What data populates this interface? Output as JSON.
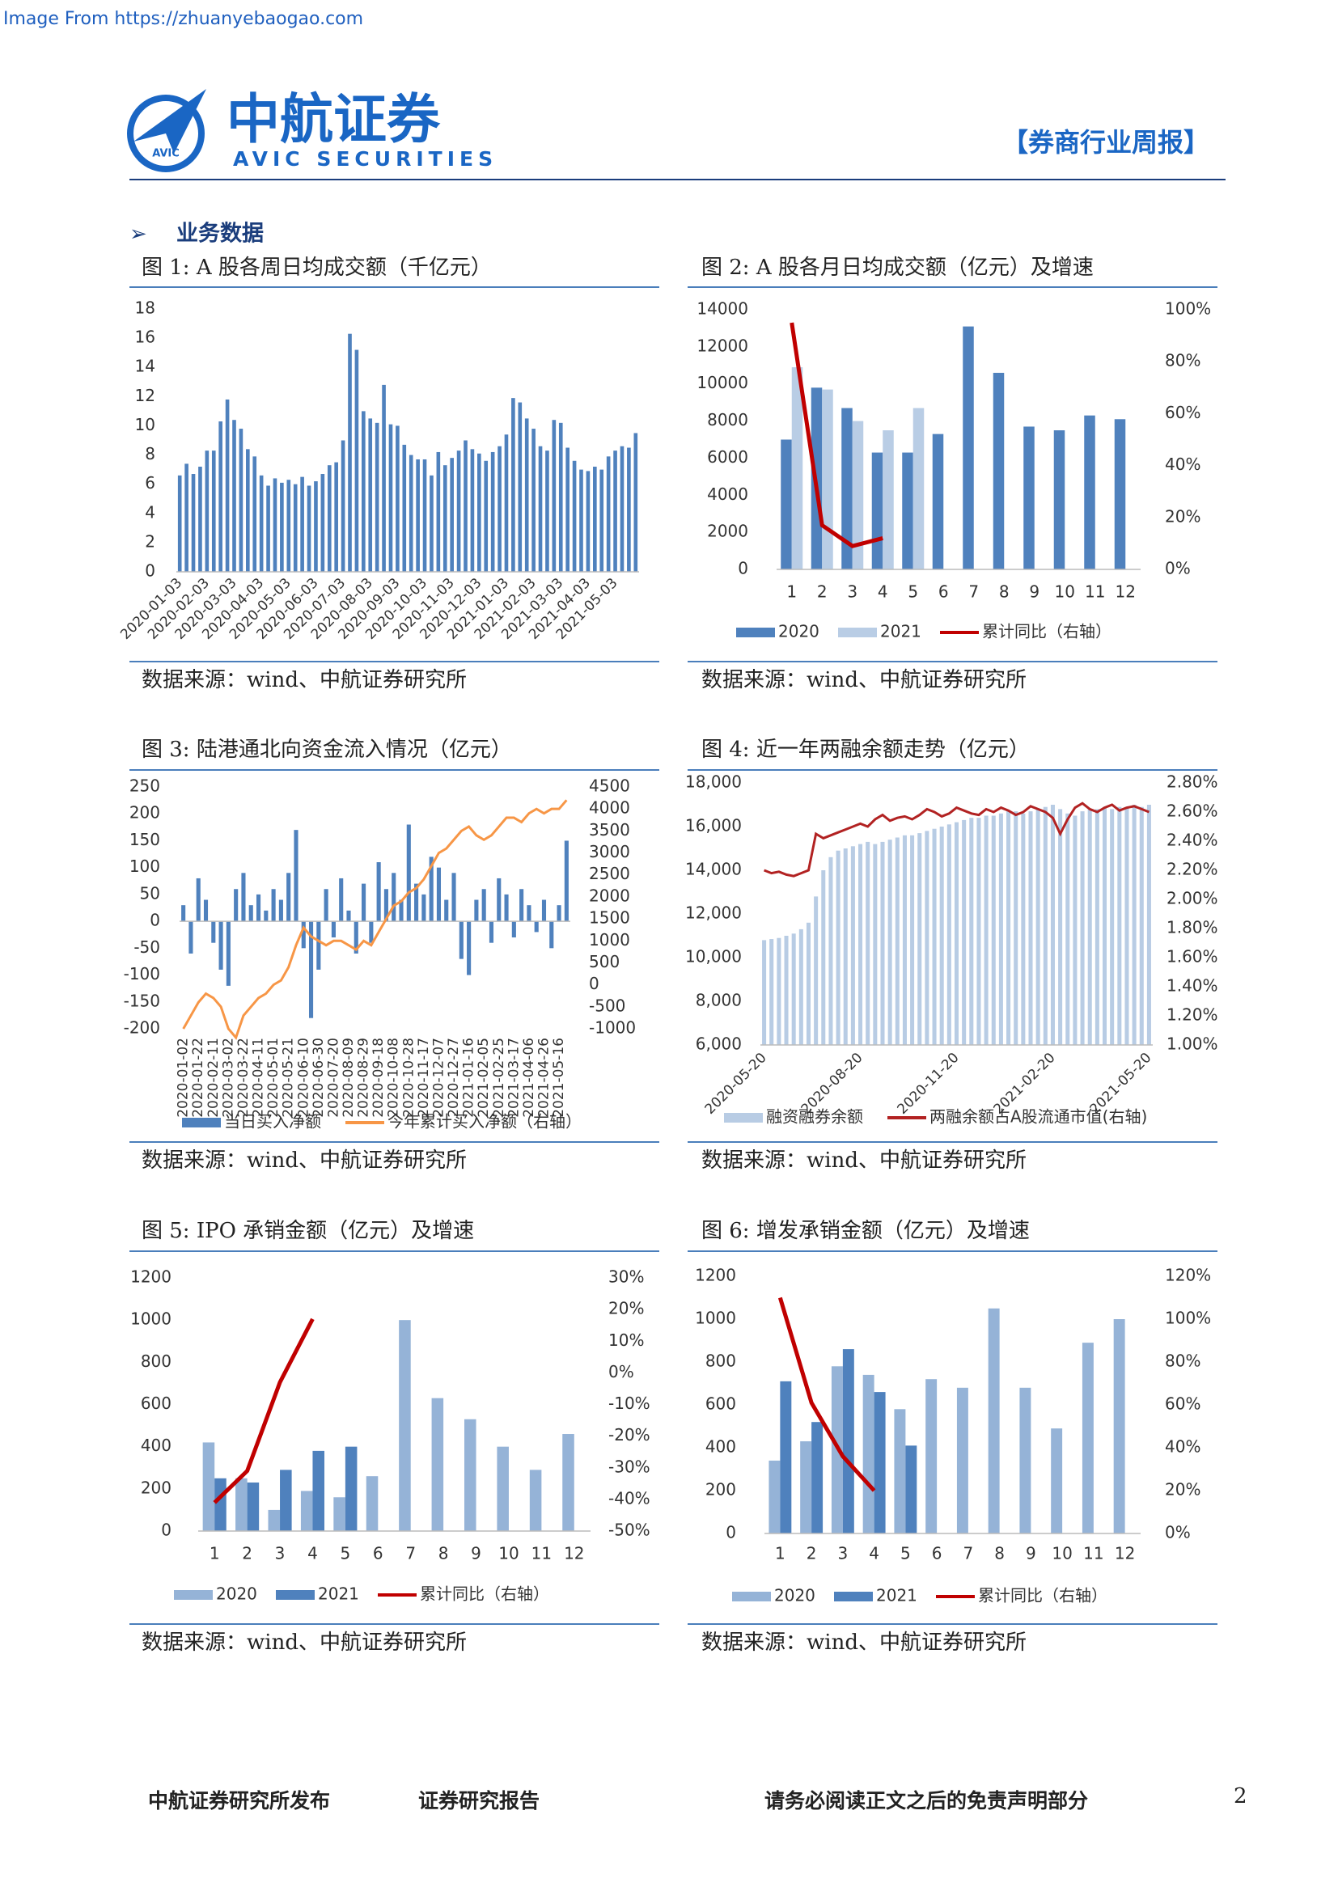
{
  "header": {
    "source_note": "Image From https://zhuanyebaogao.com",
    "logo_cn": "中航证券",
    "logo_en": "AVIC  SECURITIES",
    "logo_badge": "AVIC",
    "report_type": "【券商行业周报】"
  },
  "section": "业务数据",
  "figures": [
    {
      "caption": "图 1: A 股各周日均成交额（千亿元）",
      "source": "数据来源：wind、中航证券研究所",
      "chart_data": {
        "type": "bar",
        "ylim": [
          0,
          18
        ],
        "yticks": [
          0,
          2,
          4,
          6,
          8,
          10,
          12,
          14,
          16,
          18
        ],
        "categories": [
          "2020-01-03",
          null,
          null,
          null,
          "2020-02-03",
          null,
          null,
          null,
          "2020-03-03",
          null,
          null,
          null,
          "2020-04-03",
          null,
          null,
          null,
          "2020-05-03",
          null,
          null,
          null,
          "2020-06-03",
          null,
          null,
          null,
          "2020-07-03",
          null,
          null,
          null,
          "2020-08-03",
          null,
          null,
          null,
          "2020-09-03",
          null,
          null,
          null,
          "2020-10-03",
          null,
          null,
          null,
          "2020-11-03",
          null,
          null,
          null,
          "2020-12-03",
          null,
          null,
          null,
          "2021-01-03",
          null,
          null,
          null,
          "2021-02-03",
          null,
          null,
          null,
          "2021-03-03",
          null,
          null,
          null,
          "2021-04-03",
          null,
          null,
          null,
          "2021-05-03",
          null,
          null,
          null
        ],
        "series": [
          {
            "color": "#4f81bd",
            "values": [
              6.6,
              7.4,
              6.7,
              7.2,
              8.3,
              8.3,
              10.3,
              11.8,
              10.4,
              9.8,
              8.4,
              7.9,
              6.6,
              5.9,
              6.4,
              6.1,
              6.3,
              6.0,
              6.5,
              5.9,
              6.2,
              6.7,
              7.3,
              7.5,
              9.0,
              16.3,
              15.2,
              11.0,
              10.5,
              10.2,
              12.8,
              10.1,
              10.0,
              8.7,
              8.0,
              7.7,
              7.7,
              6.6,
              8.2,
              7.3,
              7.8,
              8.3,
              9.0,
              8.4,
              8.1,
              7.6,
              8.2,
              8.6,
              9.4,
              11.9,
              11.6,
              10.5,
              9.8,
              8.6,
              8.3,
              10.4,
              10.2,
              8.5,
              7.6,
              7.0,
              6.9,
              7.2,
              7.0,
              7.9,
              8.3,
              8.6,
              8.5,
              9.5
            ]
          }
        ]
      }
    },
    {
      "caption": "图 2: A 股各月日均成交额（亿元）及增速",
      "source": "数据来源：wind、中航证券研究所",
      "chart_data": {
        "type": "bar_line",
        "ylim": [
          0,
          14000
        ],
        "yticks": [
          0,
          2000,
          4000,
          6000,
          8000,
          10000,
          12000,
          14000
        ],
        "y2lim": [
          0,
          100
        ],
        "y2ticks": [
          {
            "value": 0,
            "label": "0%"
          },
          {
            "value": 20,
            "label": "20%"
          },
          {
            "value": 40,
            "label": "40%"
          },
          {
            "value": 60,
            "label": "60%"
          },
          {
            "value": 80,
            "label": "80%"
          },
          {
            "value": 100,
            "label": "100%"
          }
        ],
        "categories": [
          "1",
          "2",
          "3",
          "4",
          "5",
          "6",
          "7",
          "8",
          "9",
          "10",
          "11",
          "12"
        ],
        "series": [
          {
            "name": "2020",
            "kind": "bar",
            "color": "#4f81bd",
            "values": [
              7000,
              9800,
              8700,
              6300,
              6300,
              7300,
              13100,
              10600,
              7700,
              7500,
              8300,
              8100
            ]
          },
          {
            "name": "2021",
            "kind": "bar",
            "color": "#b9cde5",
            "values": [
              10900,
              9700,
              8000,
              7500,
              8700,
              null,
              null,
              null,
              null,
              null,
              null,
              null
            ]
          },
          {
            "name": "累计同比（右轴）",
            "kind": "line",
            "axis": "y2",
            "color": "#c00000",
            "values": [
              95,
              17,
              9,
              12,
              null,
              null,
              null,
              null,
              null,
              null,
              null,
              null
            ]
          }
        ]
      }
    },
    {
      "caption": "图 3: 陆港通北向资金流入情况（亿元）",
      "source": "数据来源：wind、中航证券研究所",
      "chart_data": {
        "type": "bar_line",
        "ylim": [
          -200,
          250
        ],
        "yticks": [
          -200,
          -150,
          -100,
          -50,
          0,
          50,
          100,
          150,
          200,
          250
        ],
        "y2lim": [
          -1000,
          4500
        ],
        "y2ticks": [
          -1000,
          -500,
          0,
          500,
          1000,
          1500,
          2000,
          2500,
          3000,
          3500,
          4000,
          4500
        ],
        "categories": [
          "2020-01-02",
          null,
          "2020-01-22",
          null,
          "2020-02-11",
          null,
          "2020-03-02",
          null,
          "2020-03-22",
          null,
          "2020-04-11",
          null,
          "2020-05-01",
          null,
          "2020-05-21",
          null,
          "2020-06-10",
          null,
          "2020-06-30",
          null,
          "2020-07-20",
          null,
          "2020-08-09",
          null,
          "2020-08-29",
          null,
          "2020-09-18",
          null,
          "2020-10-08",
          null,
          "2020-10-28",
          null,
          "2020-11-17",
          null,
          "2020-12-07",
          null,
          "2020-12-27",
          null,
          "2021-01-16",
          null,
          "2021-02-05",
          null,
          "2021-02-25",
          null,
          "2021-03-17",
          null,
          "2021-04-06",
          null,
          "2021-04-26",
          null,
          "2021-05-16",
          null
        ],
        "series": [
          {
            "name": "当日买入净额",
            "kind": "bar",
            "color": "#4f81bd",
            "values": [
              30,
              -60,
              80,
              40,
              -40,
              -90,
              -120,
              60,
              90,
              30,
              50,
              20,
              60,
              40,
              90,
              170,
              -50,
              -180,
              -90,
              60,
              -30,
              80,
              20,
              -60,
              70,
              -40,
              110,
              60,
              90,
              40,
              180,
              70,
              50,
              120,
              100,
              40,
              90,
              -70,
              -100,
              40,
              60,
              -40,
              80,
              50,
              -30,
              60,
              30,
              -20,
              40,
              -50,
              30,
              150
            ]
          },
          {
            "name": "今年累计买入净额（右轴）",
            "kind": "line",
            "axis": "y2",
            "color": "#f79646",
            "values": [
              -1000,
              -700,
              -400,
              -200,
              -300,
              -500,
              -1000,
              -1200,
              -700,
              -500,
              -300,
              -200,
              0,
              100,
              400,
              900,
              1300,
              1100,
              1000,
              900,
              1000,
              1000,
              900,
              800,
              1000,
              900,
              1200,
              1500,
              1800,
              1900,
              2100,
              2200,
              2400,
              2700,
              3000,
              3100,
              3300,
              3500,
              3600,
              3400,
              3300,
              3400,
              3600,
              3800,
              3800,
              3700,
              3900,
              4000,
              3900,
              4000,
              4000,
              4200
            ]
          }
        ]
      }
    },
    {
      "caption": "图 4: 近一年两融余额走势（亿元）",
      "source": "数据来源：wind、中航证券研究所",
      "chart_data": {
        "type": "bar_line",
        "ylim": [
          6000,
          18000
        ],
        "yticks": [
          {
            "value": 6000,
            "label": "6,000"
          },
          {
            "value": 8000,
            "label": "8,000"
          },
          {
            "value": 10000,
            "label": "10,000"
          },
          {
            "value": 12000,
            "label": "12,000"
          },
          {
            "value": 14000,
            "label": "14,000"
          },
          {
            "value": 16000,
            "label": "16,000"
          },
          {
            "value": 18000,
            "label": "18,000"
          }
        ],
        "y2lim": [
          1.0,
          2.8
        ],
        "y2ticks": [
          {
            "value": 1.0,
            "label": "1.00%"
          },
          {
            "value": 1.2,
            "label": "1.20%"
          },
          {
            "value": 1.4,
            "label": "1.40%"
          },
          {
            "value": 1.6,
            "label": "1.60%"
          },
          {
            "value": 1.8,
            "label": "1.80%"
          },
          {
            "value": 2.0,
            "label": "2.00%"
          },
          {
            "value": 2.2,
            "label": "2.20%"
          },
          {
            "value": 2.4,
            "label": "2.40%"
          },
          {
            "value": 2.6,
            "label": "2.60%"
          },
          {
            "value": 2.8,
            "label": "2.80%"
          }
        ],
        "categories": [
          "2020-05-20",
          null,
          null,
          null,
          null,
          null,
          null,
          null,
          null,
          null,
          null,
          null,
          null,
          "2020-08-20",
          null,
          null,
          null,
          null,
          null,
          null,
          null,
          null,
          null,
          null,
          null,
          null,
          "2020-11-20",
          null,
          null,
          null,
          null,
          null,
          null,
          null,
          null,
          null,
          null,
          null,
          null,
          "2021-02-20",
          null,
          null,
          null,
          null,
          null,
          null,
          null,
          null,
          null,
          null,
          null,
          null,
          "2021-05-20"
        ],
        "series": [
          {
            "name": "融资融券余额",
            "kind": "bar",
            "color": "#b8cce4",
            "values": [
              10800,
              10850,
              10900,
              11000,
              11100,
              11300,
              11600,
              12800,
              14000,
              14600,
              14900,
              15000,
              15100,
              15200,
              15300,
              15200,
              15300,
              15400,
              15500,
              15600,
              15600,
              15700,
              15800,
              15900,
              16000,
              16100,
              16200,
              16300,
              16400,
              16400,
              16500,
              16500,
              16600,
              16700,
              16700,
              16600,
              16700,
              16800,
              16900,
              17000,
              16800,
              16600,
              16500,
              16700,
              16800,
              16800,
              16900,
              16800,
              16900,
              16900,
              17000,
              16900,
              17000
            ]
          },
          {
            "name": "两融余额占A股流通市值(右轴)",
            "kind": "line",
            "axis": "y2",
            "color": "#b22222",
            "values": [
              2.2,
              2.18,
              2.19,
              2.17,
              2.16,
              2.18,
              2.2,
              2.45,
              2.42,
              2.44,
              2.46,
              2.48,
              2.5,
              2.52,
              2.5,
              2.55,
              2.58,
              2.54,
              2.56,
              2.57,
              2.55,
              2.58,
              2.62,
              2.6,
              2.57,
              2.59,
              2.63,
              2.61,
              2.59,
              2.58,
              2.62,
              2.6,
              2.63,
              2.61,
              2.58,
              2.6,
              2.64,
              2.62,
              2.6,
              2.56,
              2.45,
              2.55,
              2.63,
              2.66,
              2.62,
              2.6,
              2.63,
              2.65,
              2.61,
              2.63,
              2.64,
              2.62,
              2.6
            ]
          }
        ]
      }
    },
    {
      "caption": "图 5: IPO 承销金额（亿元）及增速",
      "source": "数据来源：wind、中航证券研究所",
      "chart_data": {
        "type": "bar_line",
        "ylim": [
          0,
          1200
        ],
        "yticks": [
          0,
          200,
          400,
          600,
          800,
          1000,
          1200
        ],
        "y2lim": [
          -50,
          30
        ],
        "y2ticks": [
          {
            "value": -50,
            "label": "-50%"
          },
          {
            "value": -40,
            "label": "-40%"
          },
          {
            "value": -30,
            "label": "-30%"
          },
          {
            "value": -20,
            "label": "-20%"
          },
          {
            "value": -10,
            "label": "-10%"
          },
          {
            "value": 0,
            "label": "0%"
          },
          {
            "value": 10,
            "label": "10%"
          },
          {
            "value": 20,
            "label": "20%"
          },
          {
            "value": 30,
            "label": "30%"
          }
        ],
        "categories": [
          "1",
          "2",
          "3",
          "4",
          "5",
          "6",
          "7",
          "8",
          "9",
          "10",
          "11",
          "12"
        ],
        "series": [
          {
            "name": "2020",
            "kind": "bar",
            "color": "#95b3d7",
            "values": [
              420,
              250,
              100,
              190,
              160,
              260,
              1000,
              630,
              530,
              400,
              290,
              460
            ]
          },
          {
            "name": "2021",
            "kind": "bar",
            "color": "#4f81bd",
            "values": [
              250,
              230,
              290,
              380,
              400,
              null,
              null,
              null,
              null,
              null,
              null,
              null
            ]
          },
          {
            "name": "累计同比（右轴）",
            "kind": "line",
            "axis": "y2",
            "color": "#c00000",
            "values": [
              -41,
              -31,
              -3,
              17,
              null,
              null,
              null,
              null,
              null,
              null,
              null,
              null
            ]
          }
        ]
      }
    },
    {
      "caption": "图 6: 增发承销金额（亿元）及增速",
      "source": "数据来源：wind、中航证券研究所",
      "chart_data": {
        "type": "bar_line",
        "ylim": [
          0,
          1200
        ],
        "yticks": [
          0,
          200,
          400,
          600,
          800,
          1000,
          1200
        ],
        "y2lim": [
          0,
          120
        ],
        "y2ticks": [
          {
            "value": 0,
            "label": "0%"
          },
          {
            "value": 20,
            "label": "20%"
          },
          {
            "value": 40,
            "label": "40%"
          },
          {
            "value": 60,
            "label": "60%"
          },
          {
            "value": 80,
            "label": "80%"
          },
          {
            "value": 100,
            "label": "100%"
          },
          {
            "value": 120,
            "label": "120%"
          }
        ],
        "categories": [
          "1",
          "2",
          "3",
          "4",
          "5",
          "6",
          "7",
          "8",
          "9",
          "10",
          "11",
          "12"
        ],
        "series": [
          {
            "name": "2020",
            "kind": "bar",
            "color": "#95b3d7",
            "values": [
              340,
              430,
              780,
              740,
              580,
              720,
              680,
              1050,
              680,
              490,
              890,
              1000
            ]
          },
          {
            "name": "2021",
            "kind": "bar",
            "color": "#4f81bd",
            "values": [
              710,
              520,
              860,
              660,
              410,
              null,
              null,
              null,
              null,
              null,
              null,
              null
            ]
          },
          {
            "name": "累计同比（右轴）",
            "kind": "line",
            "axis": "y2",
            "color": "#c00000",
            "values": [
              110,
              61,
              36,
              20,
              null,
              null,
              null,
              null,
              null,
              null,
              null,
              null
            ]
          }
        ]
      }
    }
  ],
  "footer": {
    "publisher": "中航证券研究所发布",
    "doc_type": "证券研究报告",
    "disclaimer": "请务必阅读正文之后的免责声明部分",
    "page": "2"
  }
}
